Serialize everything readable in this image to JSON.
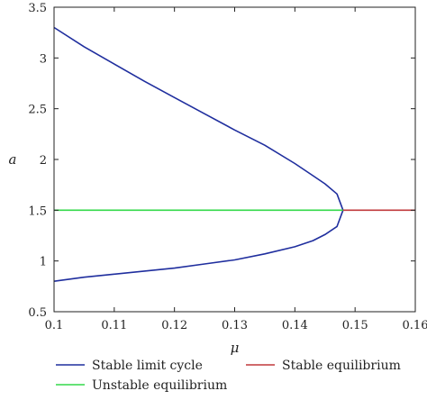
{
  "chart_data": {
    "type": "line",
    "title": "",
    "xlabel": "μ",
    "ylabel": "a",
    "xlim": [
      0.1,
      0.16
    ],
    "ylim": [
      0.5,
      3.5
    ],
    "xticks": [
      "0.1",
      "0.11",
      "0.12",
      "0.13",
      "0.14",
      "0.15",
      "0.16"
    ],
    "yticks": [
      "0.5",
      "1",
      "1.5",
      "2",
      "2.5",
      "3",
      "3.5"
    ],
    "grid": false,
    "legend_position": "bottom",
    "series": [
      {
        "name": "Stable limit cycle",
        "color": "#1f2e9e",
        "branches": [
          {
            "x": [
              0.1,
              0.105,
              0.11,
              0.115,
              0.12,
              0.125,
              0.13,
              0.135,
              0.14,
              0.143,
              0.145,
              0.147,
              0.148
            ],
            "y": [
              3.3,
              3.11,
              2.94,
              2.77,
              2.61,
              2.45,
              2.29,
              2.14,
              1.96,
              1.84,
              1.76,
              1.66,
              1.5
            ]
          },
          {
            "x": [
              0.1,
              0.105,
              0.11,
              0.115,
              0.12,
              0.125,
              0.13,
              0.135,
              0.14,
              0.143,
              0.145,
              0.147,
              0.148
            ],
            "y": [
              0.8,
              0.84,
              0.87,
              0.9,
              0.93,
              0.97,
              1.01,
              1.07,
              1.14,
              1.2,
              1.26,
              1.34,
              1.5
            ]
          }
        ]
      },
      {
        "name": "Unstable equilibrium",
        "color": "#33d94a",
        "branches": [
          {
            "x": [
              0.1,
              0.148
            ],
            "y": [
              1.5,
              1.5
            ]
          }
        ]
      },
      {
        "name": "Stable equilibrium",
        "color": "#c0393b",
        "branches": [
          {
            "x": [
              0.148,
              0.16
            ],
            "y": [
              1.5,
              1.5
            ]
          }
        ]
      }
    ]
  }
}
